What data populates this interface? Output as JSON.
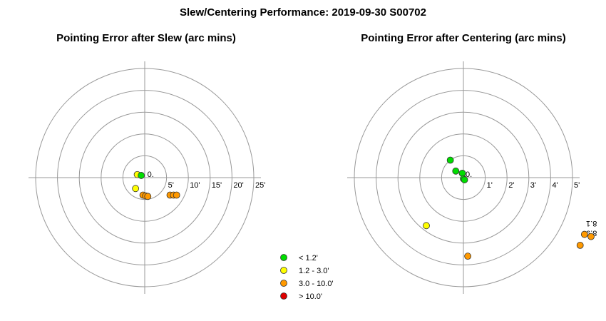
{
  "title": "Slew/Centering Performance: 2019-09-30 S00702",
  "chart_data": [
    {
      "type": "scatter",
      "title": "Pointing Error after Slew (arc mins)",
      "units": "arcmin",
      "rings": [
        5,
        10,
        15,
        20,
        25
      ],
      "tick_labels": [
        "5'",
        "10'",
        "15'",
        "20'",
        "25'"
      ],
      "axis_range": [
        -27,
        27
      ],
      "extra_labels": [
        {
          "text": "0.",
          "x": 0.6,
          "y": 0.2
        }
      ],
      "points": [
        {
          "x": -1.7,
          "y": 0.7,
          "class": "1.2 - 3.0'"
        },
        {
          "x": -0.8,
          "y": 0.5,
          "class": "< 1.2'"
        },
        {
          "x": -2.1,
          "y": -2.5,
          "class": "1.2 - 3.0'"
        },
        {
          "x": -0.4,
          "y": -4.0,
          "class": "3.0 - 10.0'"
        },
        {
          "x": 0.2,
          "y": -4.2,
          "class": "3.0 - 10.0'"
        },
        {
          "x": 0.7,
          "y": -4.3,
          "class": "3.0 - 10.0'"
        },
        {
          "x": 5.8,
          "y": -4.0,
          "class": "3.0 - 10.0'"
        },
        {
          "x": 6.6,
          "y": -4.0,
          "class": "3.0 - 10.0'"
        },
        {
          "x": 7.3,
          "y": -4.0,
          "class": "3.0 - 10.0'"
        }
      ]
    },
    {
      "type": "scatter",
      "title": "Pointing Error after Centering (arc mins)",
      "units": "arcmin",
      "rings": [
        1,
        2,
        3,
        4,
        5
      ],
      "tick_labels": [
        "1'",
        "2'",
        "3'",
        "4'",
        "5'"
      ],
      "axis_range": [
        -5.4,
        5.4
      ],
      "extra_labels": [
        {
          "text": "0.",
          "x": 0.1,
          "y": 0.04
        },
        {
          "text": "8.1",
          "x": 5.6,
          "y": -2.25,
          "rotate": 180
        },
        {
          "text": "8.9",
          "x": 5.6,
          "y": -2.7,
          "rotate": 180
        }
      ],
      "points": [
        {
          "x": -0.6,
          "y": 0.8,
          "class": "< 1.2'"
        },
        {
          "x": -0.35,
          "y": 0.3,
          "class": "< 1.2'"
        },
        {
          "x": -0.05,
          "y": 0.2,
          "class": "< 1.2'"
        },
        {
          "x": 0.0,
          "y": -0.05,
          "class": "< 1.2'"
        },
        {
          "x": 0.05,
          "y": -0.1,
          "class": "< 1.2'"
        },
        {
          "x": -1.7,
          "y": -2.2,
          "class": "1.2 - 3.0'"
        },
        {
          "x": 0.2,
          "y": -3.6,
          "class": "3.0 - 10.0'"
        },
        {
          "x": 5.55,
          "y": -2.6,
          "class": "3.0 - 10.0'"
        },
        {
          "x": 5.35,
          "y": -3.1,
          "class": "3.0 - 10.0'"
        },
        {
          "x": 5.85,
          "y": -2.7,
          "class": "3.0 - 10.0'"
        }
      ]
    }
  ],
  "legend": [
    {
      "label": "< 1.2'",
      "color": "#00dd00"
    },
    {
      "label": "1.2 - 3.0'",
      "color": "#ffff00"
    },
    {
      "label": "3.0 - 10.0'",
      "color": "#ff9900"
    },
    {
      "label": "> 10.0'",
      "color": "#dd0000"
    }
  ]
}
